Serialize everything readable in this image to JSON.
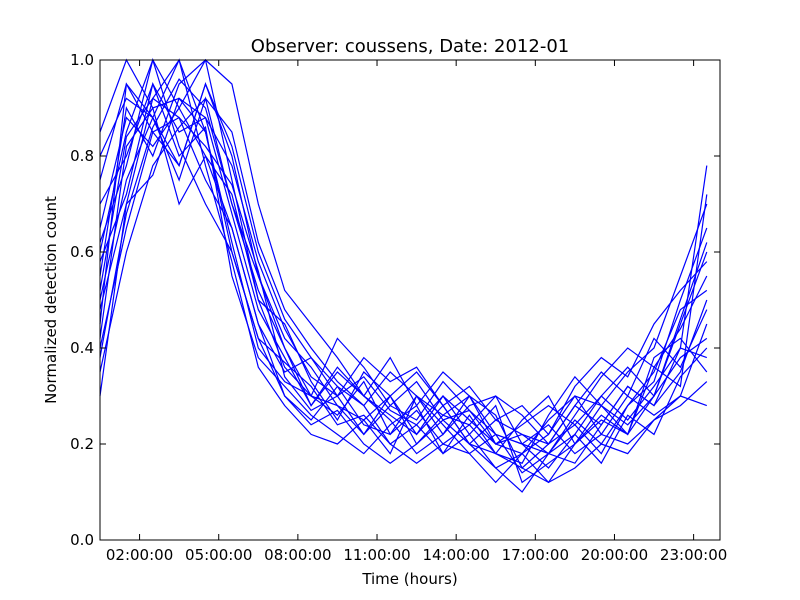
{
  "chart_data": {
    "type": "line",
    "title": "Observer: coussens, Date: 2012-01",
    "xlabel": "Time (hours)",
    "ylabel": "Normalized detection count",
    "xlim": [
      0.5,
      24.0
    ],
    "ylim": [
      0.0,
      1.0
    ],
    "x_ticks": [
      {
        "value": 2,
        "label": "02:00:00"
      },
      {
        "value": 5,
        "label": "05:00:00"
      },
      {
        "value": 8,
        "label": "08:00:00"
      },
      {
        "value": 11,
        "label": "11:00:00"
      },
      {
        "value": 14,
        "label": "14:00:00"
      },
      {
        "value": 17,
        "label": "17:00:00"
      },
      {
        "value": 20,
        "label": "20:00:00"
      },
      {
        "value": 23,
        "label": "23:00:00"
      }
    ],
    "y_ticks": [
      {
        "value": 0.0,
        "label": "0.0"
      },
      {
        "value": 0.2,
        "label": "0.2"
      },
      {
        "value": 0.4,
        "label": "0.4"
      },
      {
        "value": 0.6,
        "label": "0.6"
      },
      {
        "value": 0.8,
        "label": "0.8"
      },
      {
        "value": 1.0,
        "label": "1.0"
      }
    ],
    "grid": false,
    "line_color": "#0000ff",
    "hours": [
      0.5,
      1.5,
      2.5,
      3.5,
      4.5,
      5.5,
      6.5,
      7.5,
      8.5,
      9.5,
      10.5,
      11.5,
      12.5,
      13.5,
      14.5,
      15.5,
      16.5,
      17.5,
      18.5,
      19.5,
      20.5,
      21.5,
      22.5,
      23.5
    ],
    "series": [
      {
        "values": [
          0.45,
          0.95,
          0.88,
          0.75,
          0.92,
          0.7,
          0.55,
          0.4,
          0.3,
          0.28,
          0.25,
          0.3,
          0.22,
          0.28,
          0.2,
          0.18,
          0.15,
          0.12,
          0.2,
          0.25,
          0.22,
          0.3,
          0.45,
          0.6
        ]
      },
      {
        "values": [
          0.6,
          0.85,
          1.0,
          0.9,
          0.8,
          0.65,
          0.45,
          0.35,
          0.38,
          0.3,
          0.22,
          0.28,
          0.33,
          0.25,
          0.27,
          0.2,
          0.18,
          0.22,
          0.3,
          0.28,
          0.35,
          0.4,
          0.55,
          0.7
        ]
      },
      {
        "values": [
          0.3,
          0.7,
          0.92,
          1.0,
          0.85,
          0.6,
          0.42,
          0.3,
          0.25,
          0.32,
          0.28,
          0.2,
          0.24,
          0.3,
          0.22,
          0.15,
          0.1,
          0.18,
          0.25,
          0.2,
          0.28,
          0.35,
          0.48,
          0.52
        ]
      },
      {
        "values": [
          0.55,
          0.9,
          0.8,
          0.95,
          1.0,
          0.75,
          0.5,
          0.45,
          0.33,
          0.25,
          0.35,
          0.3,
          0.2,
          0.26,
          0.3,
          0.22,
          0.2,
          0.15,
          0.22,
          0.3,
          0.25,
          0.32,
          0.4,
          0.78
        ]
      },
      {
        "values": [
          0.7,
          0.8,
          0.95,
          0.85,
          0.88,
          0.68,
          0.48,
          0.38,
          0.28,
          0.35,
          0.3,
          0.25,
          0.18,
          0.22,
          0.28,
          0.3,
          0.2,
          0.18,
          0.16,
          0.24,
          0.32,
          0.28,
          0.35,
          0.5
        ]
      },
      {
        "values": [
          0.4,
          0.65,
          0.85,
          0.78,
          0.95,
          0.8,
          0.55,
          0.42,
          0.36,
          0.28,
          0.22,
          0.3,
          0.35,
          0.28,
          0.2,
          0.25,
          0.22,
          0.2,
          0.28,
          0.35,
          0.3,
          0.26,
          0.3,
          0.45
        ]
      },
      {
        "values": [
          0.85,
          1.0,
          0.9,
          0.92,
          0.85,
          0.62,
          0.4,
          0.33,
          0.3,
          0.26,
          0.33,
          0.22,
          0.27,
          0.2,
          0.24,
          0.18,
          0.25,
          0.3,
          0.2,
          0.26,
          0.22,
          0.38,
          0.42,
          0.35
        ]
      },
      {
        "values": [
          0.5,
          0.75,
          0.88,
          1.0,
          0.78,
          0.58,
          0.36,
          0.28,
          0.22,
          0.2,
          0.25,
          0.18,
          0.3,
          0.24,
          0.18,
          0.12,
          0.18,
          0.25,
          0.3,
          0.22,
          0.2,
          0.25,
          0.3,
          0.28
        ]
      },
      {
        "values": [
          0.35,
          0.6,
          0.78,
          0.86,
          0.92,
          0.85,
          0.62,
          0.48,
          0.4,
          0.33,
          0.28,
          0.35,
          0.3,
          0.22,
          0.3,
          0.26,
          0.15,
          0.2,
          0.24,
          0.18,
          0.28,
          0.33,
          0.5,
          0.65
        ]
      },
      {
        "values": [
          0.65,
          0.88,
          0.82,
          0.9,
          1.0,
          0.95,
          0.7,
          0.52,
          0.45,
          0.38,
          0.3,
          0.26,
          0.22,
          0.3,
          0.25,
          0.2,
          0.22,
          0.18,
          0.26,
          0.34,
          0.4,
          0.36,
          0.44,
          0.55
        ]
      },
      {
        "values": [
          0.58,
          0.72,
          0.95,
          0.8,
          0.86,
          0.55,
          0.38,
          0.32,
          0.26,
          0.22,
          0.18,
          0.24,
          0.28,
          0.18,
          0.22,
          0.28,
          0.12,
          0.16,
          0.2,
          0.28,
          0.24,
          0.3,
          0.38,
          0.42
        ]
      },
      {
        "values": [
          0.42,
          0.82,
          0.9,
          0.7,
          0.8,
          0.72,
          0.5,
          0.36,
          0.3,
          0.42,
          0.36,
          0.28,
          0.25,
          0.33,
          0.27,
          0.22,
          0.2,
          0.24,
          0.18,
          0.22,
          0.3,
          0.42,
          0.36,
          0.48
        ]
      },
      {
        "values": [
          0.75,
          0.95,
          0.85,
          0.88,
          0.75,
          0.65,
          0.45,
          0.3,
          0.24,
          0.27,
          0.2,
          0.16,
          0.2,
          0.25,
          0.2,
          0.15,
          0.18,
          0.12,
          0.15,
          0.2,
          0.18,
          0.25,
          0.28,
          0.33
        ]
      },
      {
        "values": [
          0.48,
          0.7,
          0.76,
          0.92,
          0.88,
          0.78,
          0.58,
          0.44,
          0.34,
          0.3,
          0.38,
          0.33,
          0.36,
          0.28,
          0.32,
          0.25,
          0.28,
          0.22,
          0.32,
          0.38,
          0.34,
          0.45,
          0.52,
          0.58
        ]
      },
      {
        "values": [
          0.62,
          0.78,
          1.0,
          0.82,
          0.7,
          0.6,
          0.42,
          0.37,
          0.32,
          0.24,
          0.26,
          0.2,
          0.16,
          0.2,
          0.18,
          0.22,
          0.14,
          0.18,
          0.22,
          0.16,
          0.26,
          0.22,
          0.34,
          0.4
        ]
      },
      {
        "values": [
          0.38,
          0.68,
          0.86,
          0.96,
          0.9,
          0.7,
          0.52,
          0.4,
          0.28,
          0.36,
          0.3,
          0.38,
          0.28,
          0.35,
          0.3,
          0.2,
          0.24,
          0.28,
          0.24,
          0.3,
          0.36,
          0.3,
          0.46,
          0.62
        ]
      },
      {
        "values": [
          0.8,
          0.92,
          0.88,
          0.78,
          0.95,
          0.82,
          0.6,
          0.46,
          0.38,
          0.32,
          0.24,
          0.22,
          0.3,
          0.26,
          0.24,
          0.3,
          0.26,
          0.2,
          0.28,
          0.24,
          0.32,
          0.28,
          0.4,
          0.38
        ]
      },
      {
        "values": [
          0.52,
          0.84,
          0.92,
          0.88,
          0.82,
          0.74,
          0.56,
          0.34,
          0.27,
          0.3,
          0.34,
          0.27,
          0.24,
          0.18,
          0.26,
          0.18,
          0.16,
          0.26,
          0.34,
          0.28,
          0.22,
          0.36,
          0.32,
          0.72
        ]
      }
    ]
  }
}
